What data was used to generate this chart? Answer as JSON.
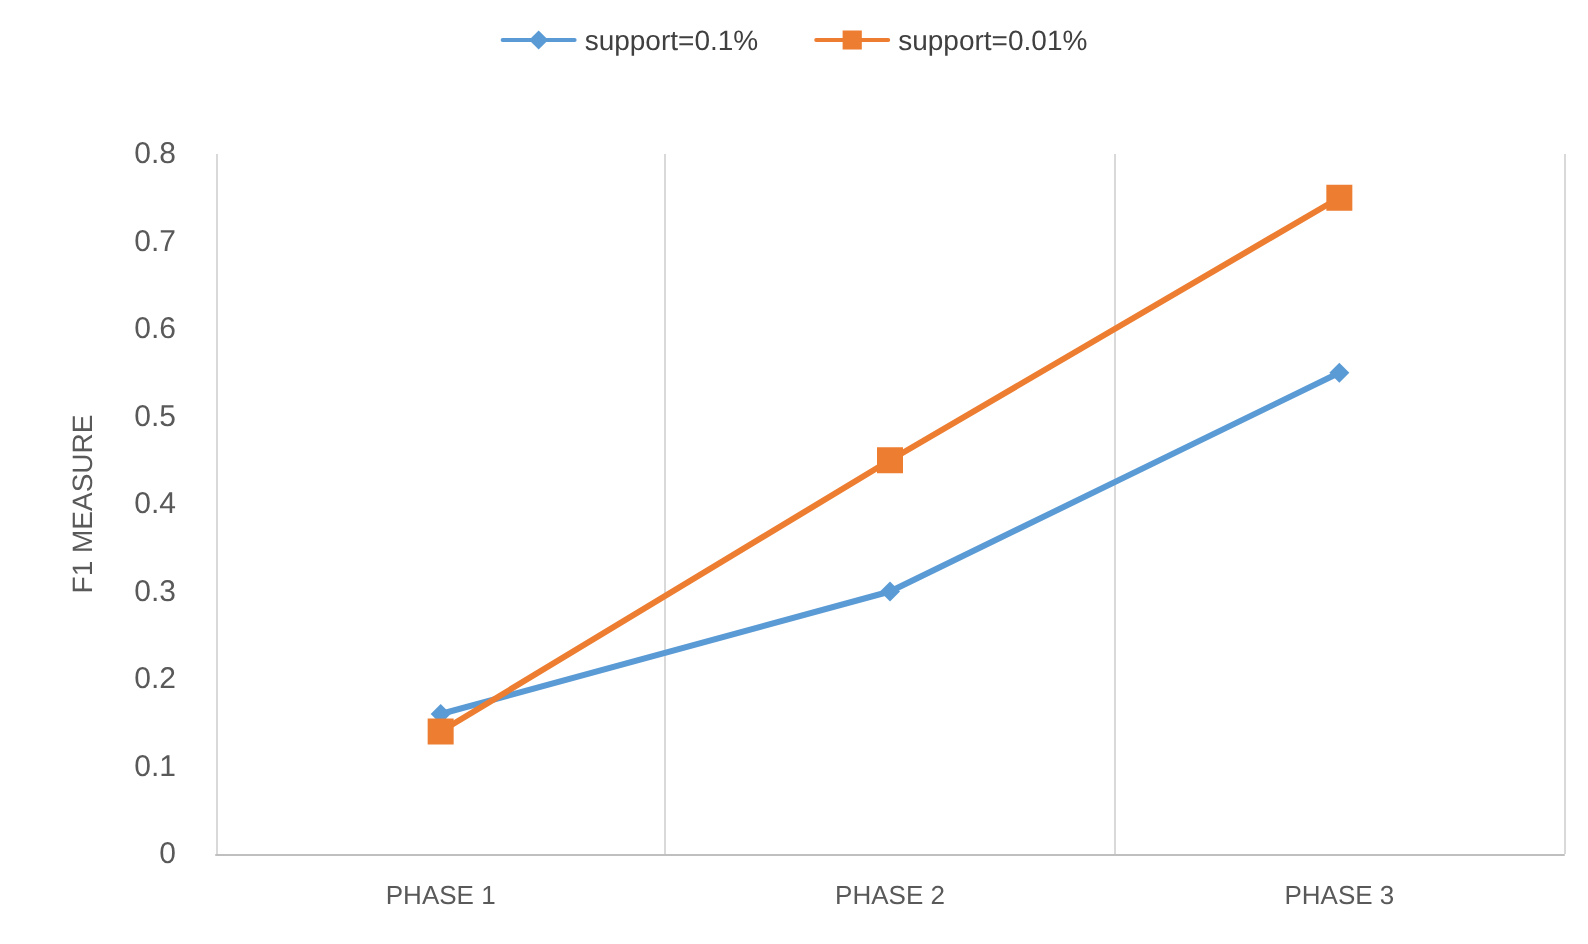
{
  "chart_data": {
    "type": "line",
    "ylabel": "F1 MEASURE",
    "categories": [
      "PHASE 1",
      "PHASE 2",
      "PHASE 3"
    ],
    "series": [
      {
        "name": "support=0.1%",
        "color": "#5b9bd5",
        "marker": "diamond",
        "values": [
          0.16,
          0.3,
          0.55
        ]
      },
      {
        "name": "support=0.01%",
        "color": "#ed7d31",
        "marker": "square",
        "values": [
          0.14,
          0.45,
          0.75
        ]
      }
    ],
    "ylim": [
      0,
      0.8
    ],
    "yticks": [
      0,
      0.1,
      0.2,
      0.3,
      0.4,
      0.5,
      0.6,
      0.7,
      0.8
    ],
    "grid": "x",
    "legend": "top",
    "line_style": "solid"
  }
}
